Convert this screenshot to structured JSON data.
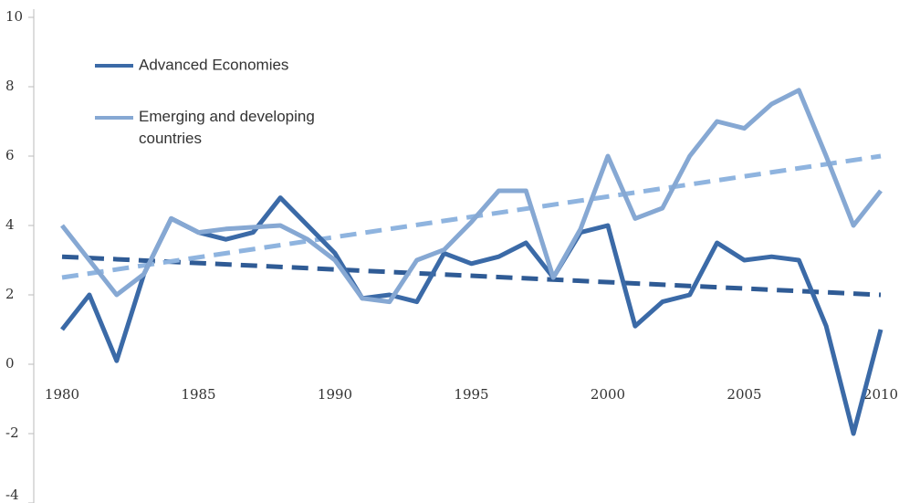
{
  "chart_data": {
    "type": "line",
    "x": [
      1980,
      1981,
      1982,
      1983,
      1984,
      1985,
      1986,
      1987,
      1988,
      1989,
      1990,
      1991,
      1992,
      1993,
      1994,
      1995,
      1996,
      1997,
      1998,
      1999,
      2000,
      2001,
      2002,
      2003,
      2004,
      2005,
      2006,
      2007,
      2008,
      2009,
      2010
    ],
    "series": [
      {
        "name": "Advanced Economies",
        "color": "#3b6aa7",
        "values": [
          1.0,
          2.0,
          0.1,
          2.6,
          4.2,
          3.8,
          3.6,
          3.8,
          4.8,
          4.0,
          3.2,
          1.9,
          2.0,
          1.8,
          3.2,
          2.9,
          3.1,
          3.5,
          2.5,
          3.8,
          4.0,
          1.1,
          1.8,
          2.0,
          3.5,
          3.0,
          3.1,
          3.0,
          1.1,
          -2.0,
          1.0
        ]
      },
      {
        "name": "Emerging and developing countries",
        "color": "#86a8d3",
        "values": [
          4.0,
          3.0,
          2.0,
          2.6,
          4.2,
          3.8,
          3.9,
          3.95,
          4.0,
          3.6,
          3.0,
          1.9,
          1.8,
          3.0,
          3.3,
          4.1,
          5.0,
          5.0,
          2.5,
          3.9,
          6.0,
          4.2,
          4.5,
          6.0,
          7.0,
          6.8,
          7.5,
          7.9,
          6.0,
          4.0,
          5.0
        ]
      }
    ],
    "trends": [
      {
        "color": "#2f5b95",
        "x": [
          1980,
          2010
        ],
        "values": [
          3.1,
          2.0
        ]
      },
      {
        "color": "#8fb4df",
        "x": [
          1980,
          2010
        ],
        "values": [
          2.5,
          6.0
        ]
      }
    ],
    "xlim": [
      1980,
      2010
    ],
    "xticks": [
      1980,
      1985,
      1990,
      1995,
      2000,
      2005,
      2010
    ],
    "ylim": [
      -4,
      10
    ],
    "yticks": [
      -4,
      -2,
      0,
      2,
      4,
      6,
      8,
      10
    ]
  }
}
